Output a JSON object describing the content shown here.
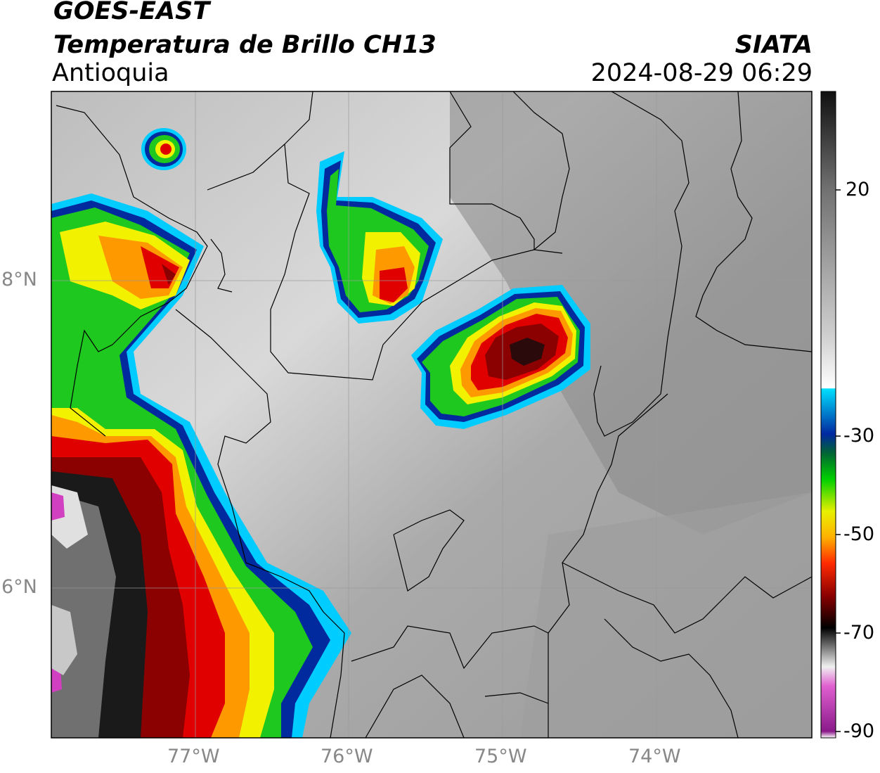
{
  "header": {
    "satellite": "GOES-EAST",
    "product": "Temperatura de Brillo CH13",
    "region": "Antioquia",
    "organization": "SIATA",
    "datetime": "2024-08-29 06:29"
  },
  "axes": {
    "lat_labels": [
      "8°N",
      "6°N"
    ],
    "lon_labels": [
      "77°W",
      "76°W",
      "75°W",
      "74°W"
    ]
  },
  "colorbar": {
    "ticks": [
      "20",
      "-30",
      "-50",
      "-70",
      "-90"
    ]
  },
  "colors": {
    "cold_core": "#8b0000",
    "red": "#e00000",
    "orange": "#ff9900",
    "yellow": "#f2f200",
    "green": "#1ec81e",
    "dark_blue": "#002a9e",
    "cyan": "#00ccff",
    "magenta": "#d040c0"
  }
}
